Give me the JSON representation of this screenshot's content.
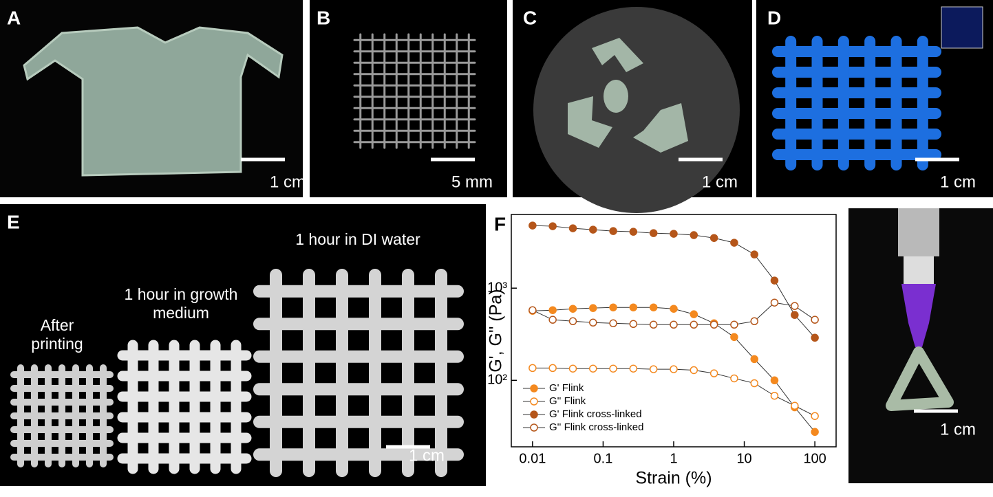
{
  "panels": [
    {
      "label": "A",
      "scale_bar": "1 cm"
    },
    {
      "label": "B",
      "scale_bar": "5 mm"
    },
    {
      "label": "C",
      "scale_bar": "1 cm"
    },
    {
      "label": "D",
      "scale_bar": "1 cm"
    },
    {
      "label": "E",
      "scale_bar": "1 cm",
      "captions": [
        [
          "After",
          "printing"
        ],
        [
          "1 hour in growth",
          "medium"
        ],
        [
          "1 hour in DI water"
        ]
      ]
    },
    {
      "label": "F",
      "scale_bar": "1 cm"
    }
  ],
  "chart_data": {
    "type": "line",
    "log_x": true,
    "log_y": true,
    "x_label": "Strain (%)",
    "y_label": "G', G'' (Pa)",
    "x": [
      0.01,
      0.0193,
      0.0373,
      0.072,
      0.139,
      0.268,
      0.518,
      1,
      1.93,
      3.73,
      7.2,
      13.9,
      26.8,
      51.8,
      100
    ],
    "xlim": [
      0.005,
      200
    ],
    "xticks": [
      0.01,
      0.1,
      1,
      10,
      100
    ],
    "ylim": [
      19,
      6300
    ],
    "yticks": [
      {
        "value": 100,
        "label": "10²"
      },
      {
        "value": 1000,
        "label": "10³"
      }
    ],
    "series": [
      {
        "name": "G' Flink",
        "color": "#f4891f",
        "filled": true,
        "values": [
          567,
          577,
          597,
          608,
          618,
          618,
          618,
          597,
          521,
          416,
          295,
          170,
          100,
          51,
          27.6
        ]
      },
      {
        "name": "G'' Flink",
        "color": "#f4891f",
        "filled": false,
        "values": [
          136,
          136,
          134,
          134,
          134,
          134,
          132,
          132,
          129,
          119,
          105,
          93,
          68,
          53,
          41
        ]
      },
      {
        "name": "G' Flink cross-linked",
        "color": "#b5561a",
        "filled": true,
        "values": [
          4780,
          4700,
          4460,
          4310,
          4160,
          4090,
          3950,
          3890,
          3760,
          3500,
          3110,
          2320,
          1210,
          512,
          290
        ]
      },
      {
        "name": "G'' Flink cross-linked",
        "color": "#b5561a",
        "filled": false,
        "values": [
          577,
          454,
          438,
          423,
          416,
          409,
          402,
          402,
          402,
          402,
          402,
          438,
          697,
          640,
          454
        ]
      }
    ]
  }
}
